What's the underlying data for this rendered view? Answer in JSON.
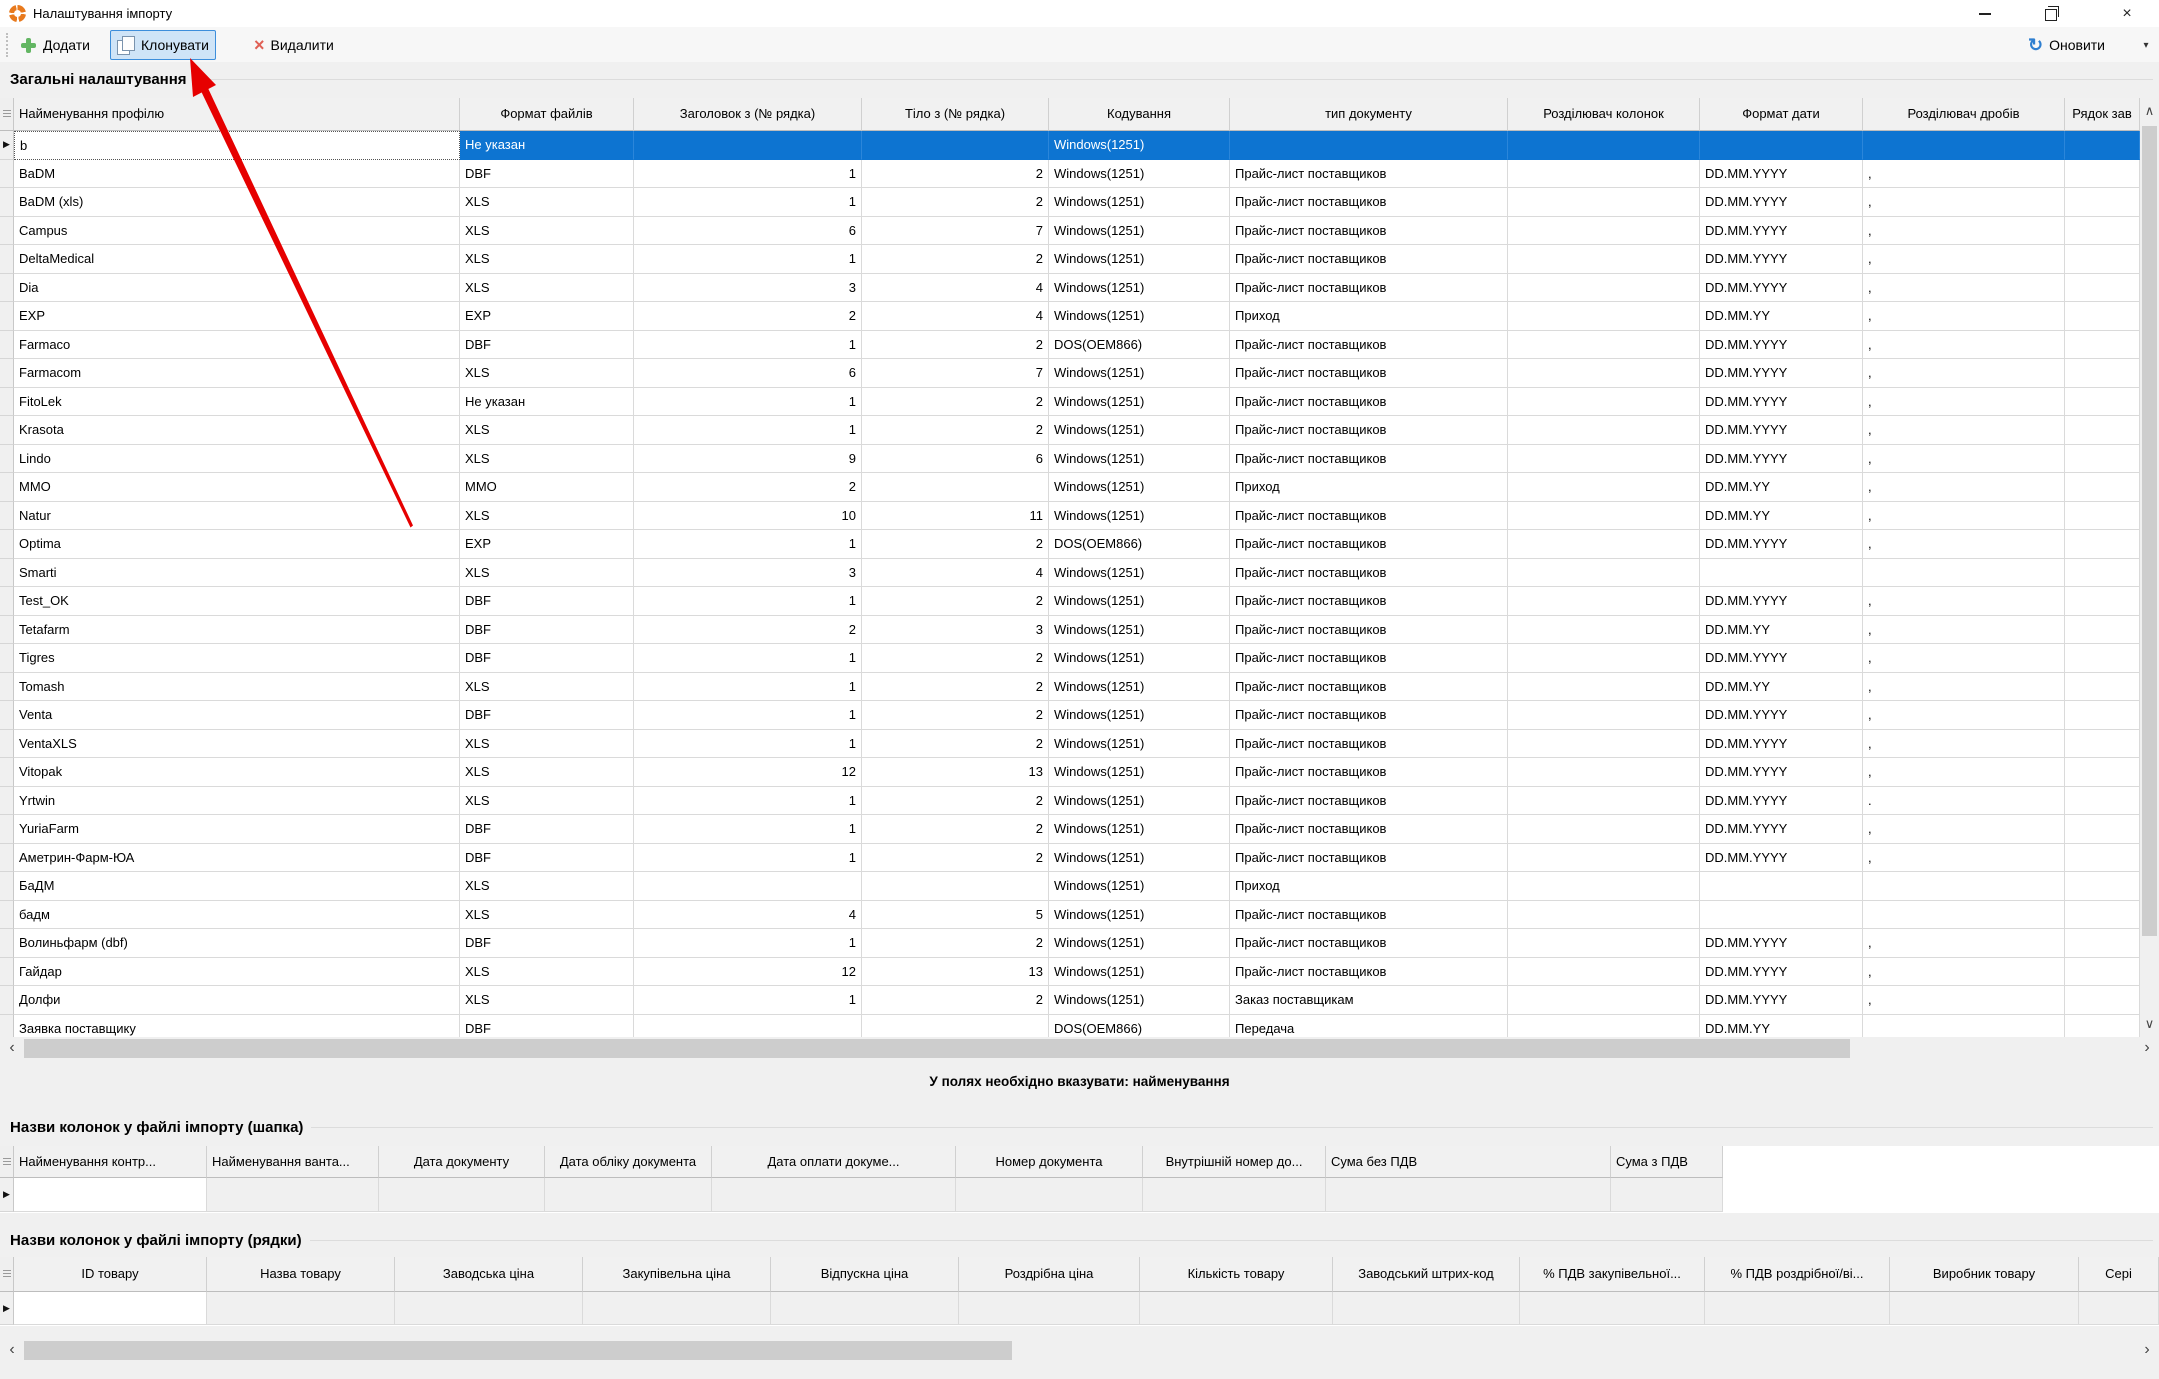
{
  "window": {
    "title": "Налаштування імпорту"
  },
  "toolbar": {
    "add": "Додати",
    "clone": "Клонувати",
    "delete": "Видалити",
    "refresh": "Оновити"
  },
  "sections": {
    "general": "Загальні налаштування",
    "hint": "У полях необхідно вказувати: найменування",
    "header_cols": "Назви колонок у файлі імпорту (шапка)",
    "row_cols": "Назви колонок у файлі імпорту (рядки)"
  },
  "profiles_grid": {
    "columns": [
      "Найменування профілю",
      "Формат файлів",
      "Заголовок з (№ рядка)",
      "Тіло з (№ рядка)",
      "Кодування",
      "тип документу",
      "Розділювач колонок",
      "Формат дати",
      "Розділювач дробів",
      "Рядок зав"
    ],
    "selected_index": 0,
    "rows": [
      [
        "b",
        "Не указан",
        "",
        "",
        "Windows(1251)",
        "",
        "",
        "",
        "",
        ""
      ],
      [
        "BaDM",
        "DBF",
        "1",
        "2",
        "Windows(1251)",
        "Прайс-лист поставщиков",
        "",
        "DD.MM.YYYY",
        ",",
        ""
      ],
      [
        "BaDM (xls)",
        "XLS",
        "1",
        "2",
        "Windows(1251)",
        "Прайс-лист поставщиков",
        "",
        "DD.MM.YYYY",
        ",",
        ""
      ],
      [
        "Campus",
        "XLS",
        "6",
        "7",
        "Windows(1251)",
        "Прайс-лист поставщиков",
        "",
        "DD.MM.YYYY",
        ",",
        ""
      ],
      [
        "DeltaMedical",
        "XLS",
        "1",
        "2",
        "Windows(1251)",
        "Прайс-лист поставщиков",
        "",
        "DD.MM.YYYY",
        ",",
        ""
      ],
      [
        "Dia",
        "XLS",
        "3",
        "4",
        "Windows(1251)",
        "Прайс-лист поставщиков",
        "",
        "DD.MM.YYYY",
        ",",
        ""
      ],
      [
        "EXP",
        "EXP",
        "2",
        "4",
        "Windows(1251)",
        "Приход",
        "",
        "DD.MM.YY",
        ",",
        ""
      ],
      [
        "Farmaco",
        "DBF",
        "1",
        "2",
        "DOS(OEM866)",
        "Прайс-лист поставщиков",
        "",
        "DD.MM.YYYY",
        ",",
        ""
      ],
      [
        "Farmacom",
        "XLS",
        "6",
        "7",
        "Windows(1251)",
        "Прайс-лист поставщиков",
        "",
        "DD.MM.YYYY",
        ",",
        ""
      ],
      [
        "FitoLek",
        "Не указан",
        "1",
        "2",
        "Windows(1251)",
        "Прайс-лист поставщиков",
        "",
        "DD.MM.YYYY",
        ",",
        ""
      ],
      [
        "Krasota",
        "XLS",
        "1",
        "2",
        "Windows(1251)",
        "Прайс-лист поставщиков",
        "",
        "DD.MM.YYYY",
        ",",
        ""
      ],
      [
        "Lindo",
        "XLS",
        "9",
        "6",
        "Windows(1251)",
        "Прайс-лист поставщиков",
        "",
        "DD.MM.YYYY",
        ",",
        ""
      ],
      [
        "MMO",
        "MMO",
        "2",
        "",
        "Windows(1251)",
        "Приход",
        "",
        "DD.MM.YY",
        ",",
        ""
      ],
      [
        "Natur",
        "XLS",
        "10",
        "11",
        "Windows(1251)",
        "Прайс-лист поставщиков",
        "",
        "DD.MM.YY",
        ",",
        ""
      ],
      [
        "Optima",
        "EXP",
        "1",
        "2",
        "DOS(OEM866)",
        "Прайс-лист поставщиков",
        "",
        "DD.MM.YYYY",
        ",",
        ""
      ],
      [
        "Smarti",
        "XLS",
        "3",
        "4",
        "Windows(1251)",
        "Прайс-лист поставщиков",
        "",
        "",
        "",
        ""
      ],
      [
        "Test_OK",
        "DBF",
        "1",
        "2",
        "Windows(1251)",
        "Прайс-лист поставщиков",
        "",
        "DD.MM.YYYY",
        ",",
        ""
      ],
      [
        "Tetafarm",
        "DBF",
        "2",
        "3",
        "Windows(1251)",
        "Прайс-лист поставщиков",
        "",
        "DD.MM.YY",
        ",",
        ""
      ],
      [
        "Tigres",
        "DBF",
        "1",
        "2",
        "Windows(1251)",
        "Прайс-лист поставщиков",
        "",
        "DD.MM.YYYY",
        ",",
        ""
      ],
      [
        "Tomash",
        "XLS",
        "1",
        "2",
        "Windows(1251)",
        "Прайс-лист поставщиков",
        "",
        "DD.MM.YY",
        ",",
        ""
      ],
      [
        "Venta",
        "DBF",
        "1",
        "2",
        "Windows(1251)",
        "Прайс-лист поставщиков",
        "",
        "DD.MM.YYYY",
        ",",
        ""
      ],
      [
        "VentaXLS",
        "XLS",
        "1",
        "2",
        "Windows(1251)",
        "Прайс-лист поставщиков",
        "",
        "DD.MM.YYYY",
        ",",
        ""
      ],
      [
        "Vitopak",
        "XLS",
        "12",
        "13",
        "Windows(1251)",
        "Прайс-лист поставщиков",
        "",
        "DD.MM.YYYY",
        ",",
        ""
      ],
      [
        "Yrtwin",
        "XLS",
        "1",
        "2",
        "Windows(1251)",
        "Прайс-лист поставщиков",
        "",
        "DD.MM.YYYY",
        ".",
        ""
      ],
      [
        "YuriaFarm",
        "DBF",
        "1",
        "2",
        "Windows(1251)",
        "Прайс-лист поставщиков",
        "",
        "DD.MM.YYYY",
        ",",
        ""
      ],
      [
        "Аметрин-Фарм-ЮА",
        "DBF",
        "1",
        "2",
        "Windows(1251)",
        "Прайс-лист поставщиков",
        "",
        "DD.MM.YYYY",
        ",",
        ""
      ],
      [
        "БаДМ",
        "XLS",
        "",
        "",
        "Windows(1251)",
        "Приход",
        "",
        "",
        "",
        ""
      ],
      [
        "бадм",
        "XLS",
        "4",
        "5",
        "Windows(1251)",
        "Прайс-лист поставщиков",
        "",
        "",
        "",
        ""
      ],
      [
        "Волиньфарм (dbf)",
        "DBF",
        "1",
        "2",
        "Windows(1251)",
        "Прайс-лист поставщиков",
        "",
        "DD.MM.YYYY",
        ",",
        ""
      ],
      [
        "Гайдар",
        "XLS",
        "12",
        "13",
        "Windows(1251)",
        "Прайс-лист поставщиков",
        "",
        "DD.MM.YYYY",
        ",",
        ""
      ],
      [
        "Долфи",
        "XLS",
        "1",
        "2",
        "Windows(1251)",
        "Заказ поставщикам",
        "",
        "DD.MM.YYYY",
        ",",
        ""
      ],
      [
        "Заявка поставщику",
        "DBF",
        "",
        "",
        "DOS(OEM866)",
        "Передача",
        "",
        "DD.MM.YY",
        "",
        ""
      ]
    ]
  },
  "header_grid": {
    "columns": [
      "Найменування контр...",
      "Найменування ванта...",
      "Дата документу",
      "Дата обліку документа",
      "Дата оплати докуме...",
      "Номер документа",
      "Внутрішній номер до...",
      "Сума без ПДВ",
      "Сума з ПДВ"
    ]
  },
  "rows_grid": {
    "columns": [
      "ID товару",
      "Назва товару",
      "Заводська ціна",
      "Закупівельна ціна",
      "Відпускна ціна",
      "Роздрібна ціна",
      "Кількість товару",
      "Заводський штрих-код",
      "% ПДВ закупівельної...",
      "% ПДВ роздрібної/ві...",
      "Виробник товару",
      "Сері"
    ]
  },
  "glyphs": {
    "row_marker": "▶",
    "scroll_up": "∧",
    "scroll_down": "∨",
    "scroll_left": "‹",
    "scroll_right": "›",
    "dropdown": "▾",
    "refresh": "↻",
    "delete_x": "×",
    "close_x": "×"
  },
  "colors": {
    "selection_blue": "#0d74d1",
    "clone_highlight_bg": "#cfe4f7",
    "clone_highlight_border": "#3d8edb",
    "annotation_red": "#e60000",
    "app_icon_orange": "#e87a1e",
    "add_green": "#63b663",
    "delete_red": "#e06055",
    "refresh_blue": "#2f7fd0"
  }
}
